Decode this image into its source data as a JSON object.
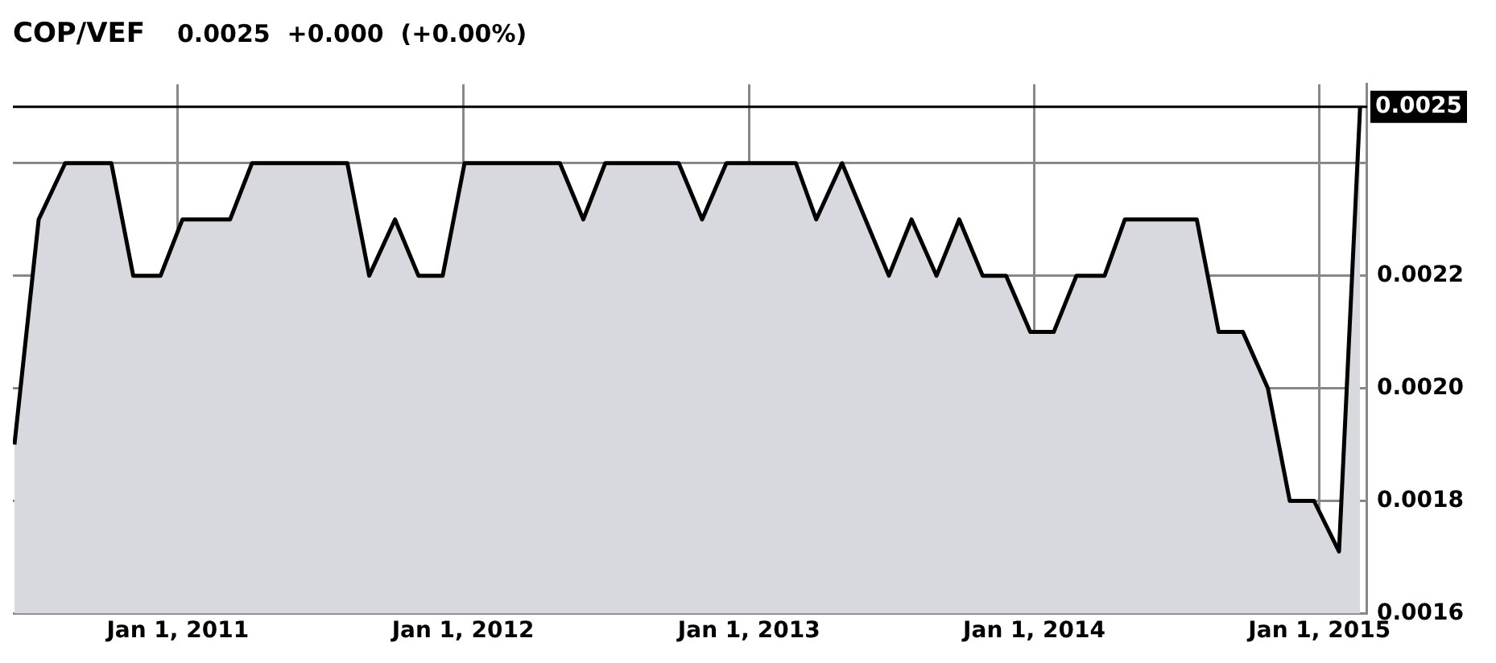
{
  "chart_data": {
    "type": "area",
    "title": "COP/VEF",
    "subtitle": "0.0025  +0.000  (+0.00%)",
    "x": [
      "2010-06-06",
      "2010-07-07",
      "2010-08-10",
      "2010-10-08",
      "2010-11-05",
      "2010-12-10",
      "2011-01-07",
      "2011-03-09",
      "2011-04-06",
      "2011-08-06",
      "2011-09-03",
      "2011-10-06",
      "2011-11-05",
      "2011-12-06",
      "2012-01-03",
      "2012-05-04",
      "2012-06-03",
      "2012-07-01",
      "2012-10-03",
      "2012-11-02",
      "2012-12-03",
      "2013-03-02",
      "2013-03-28",
      "2013-04-30",
      "2013-06-29",
      "2013-07-28",
      "2013-08-29",
      "2013-09-27",
      "2013-10-27",
      "2013-11-26",
      "2013-12-27",
      "2014-01-26",
      "2014-02-24",
      "2014-04-01",
      "2014-04-27",
      "2014-07-28",
      "2014-08-25",
      "2014-09-25",
      "2014-10-27",
      "2014-11-24",
      "2014-12-25",
      "2015-01-26",
      "2015-02-22"
    ],
    "series": [
      {
        "color": "#000000",
        "values": [
          0.0019,
          0.0023,
          0.0024,
          0.0024,
          0.0022,
          0.0022,
          0.0023,
          0.0023,
          0.0024,
          0.0024,
          0.0022,
          0.0023,
          0.0022,
          0.0022,
          0.0024,
          0.0024,
          0.0023,
          0.0024,
          0.0024,
          0.0023,
          0.0024,
          0.0024,
          0.0023,
          0.0024,
          0.0022,
          0.0023,
          0.0022,
          0.0023,
          0.0022,
          0.0022,
          0.0021,
          0.0021,
          0.0022,
          0.0022,
          0.0023,
          0.0023,
          0.0021,
          0.0021,
          0.002,
          0.0018,
          0.0018,
          0.00171,
          0.0025
        ]
      }
    ],
    "xlim": [
      "2010-06-04",
      "2015-03-03"
    ],
    "xticks": [
      {
        "value": "2011-01-01",
        "label": "Jan 1, 2011"
      },
      {
        "value": "2012-01-01",
        "label": "Jan 1, 2012"
      },
      {
        "value": "2013-01-01",
        "label": "Jan 1, 2013"
      },
      {
        "value": "2014-01-01",
        "label": "Jan 1, 2014"
      },
      {
        "value": "2015-01-01",
        "label": "Jan 1, 2015"
      }
    ],
    "ylim": [
      0.0016,
      0.00254
    ],
    "yticks": [
      {
        "value": 0.0016,
        "label": "0.0016"
      },
      {
        "value": 0.0018,
        "label": "0.0018"
      },
      {
        "value": 0.002,
        "label": "0.0020"
      },
      {
        "value": 0.0022,
        "label": "0.0022"
      },
      {
        "value": 0.0024,
        "label": null
      }
    ],
    "ref_lines": [
      {
        "axis": "y",
        "value": 0.0025,
        "label": "0.0025",
        "color": "#000000"
      }
    ],
    "grid": true,
    "legend": false
  }
}
